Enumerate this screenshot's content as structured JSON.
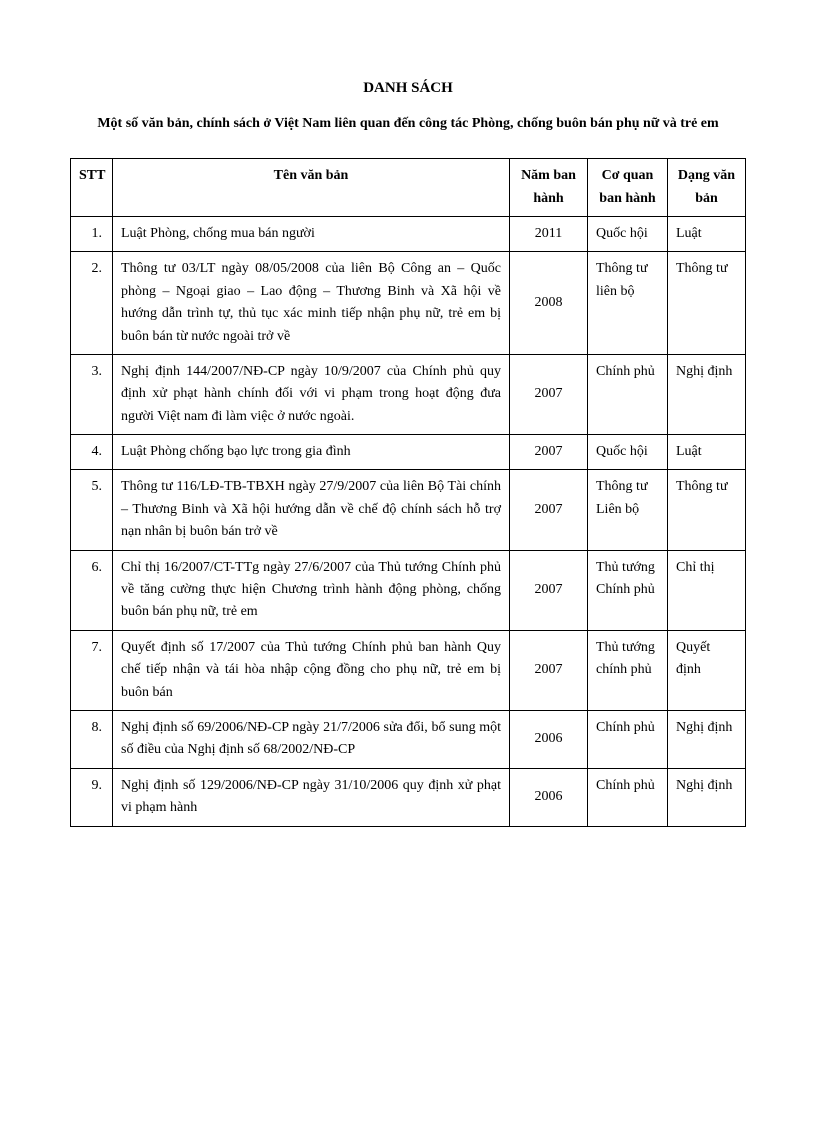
{
  "heading": {
    "title": "DANH SÁCH",
    "subtitle": "Một số văn bản, chính sách ở Việt Nam liên quan đến công tác Phòng, chống buôn bán phụ nữ và trẻ em"
  },
  "table": {
    "columns": {
      "stt": "STT",
      "name": "Tên văn bản",
      "year": "Năm ban hành",
      "agency": "Cơ quan ban hành",
      "type": "Dạng văn bản"
    },
    "rows": [
      {
        "stt": "1.",
        "name": "Luật Phòng, chống mua bán người",
        "year": "2011",
        "agency": "Quốc hội",
        "type": "Luật"
      },
      {
        "stt": "2.",
        "name": "Thông tư 03/LT ngày 08/05/2008 của liên Bộ Công an – Quốc phòng – Ngoại giao – Lao động – Thương Binh và  Xã hội về hướng dẫn trình tự, thủ tục xác minh tiếp nhận phụ nữ, trẻ em bị buôn bán từ nước ngoài trở về",
        "year": "2008",
        "agency": "Thông tư liên bộ",
        "type": "Thông tư"
      },
      {
        "stt": "3.",
        "name": "Nghị định 144/2007/NĐ-CP ngày 10/9/2007 của Chính phủ quy định xử phạt hành chính đối với vi phạm trong hoạt động đưa người Việt nam đi làm việc ở nước ngoài.",
        "year": "2007",
        "agency": "Chính phủ",
        "type": "Nghị định"
      },
      {
        "stt": "4.",
        "name": "Luật Phòng chống bạo lực trong gia đình",
        "year": "2007",
        "agency": "Quốc hội",
        "type": "Luật"
      },
      {
        "stt": "5.",
        "name": "Thông tư 116/LĐ-TB-TBXH ngày 27/9/2007 của liên Bộ Tài chính – Thương Binh và Xã hội hướng dẫn về chế độ chính sách hỗ trợ nạn nhân bị buôn bán trở về",
        "year": "2007",
        "agency": "Thông tư Liên bộ",
        "type": "Thông tư"
      },
      {
        "stt": "6.",
        "name": "Chỉ thị 16/2007/CT-TTg ngày 27/6/2007 của Thủ tướng Chính phủ về tăng cường thực hiện Chương trình hành động phòng, chống buôn bán phụ nữ, trẻ em",
        "year": "2007",
        "agency": "Thủ tướng Chính phủ",
        "type": "Chỉ thị"
      },
      {
        "stt": "7.",
        "name": "Quyết định số 17/2007 của Thủ tướng Chính phủ ban hành Quy chế tiếp nhận và tái hòa nhập cộng đồng cho phụ nữ, trẻ em bị buôn bán",
        "year": "2007",
        "agency": "Thủ tướng chính phủ",
        "type": "Quyết định"
      },
      {
        "stt": "8.",
        "name": "Nghị định số 69/2006/NĐ-CP ngày 21/7/2006 sửa đổi, bổ sung một số điều của Nghị định số 68/2002/NĐ-CP",
        "year": "2006",
        "agency": "Chính phủ",
        "type": "Nghị định"
      },
      {
        "stt": "9.",
        "name": "Nghị định số 129/2006/NĐ-CP ngày 31/10/2006 quy định xử phạt vi phạm hành",
        "year": "2006",
        "agency": "Chính phủ",
        "type": "Nghị định"
      }
    ]
  }
}
